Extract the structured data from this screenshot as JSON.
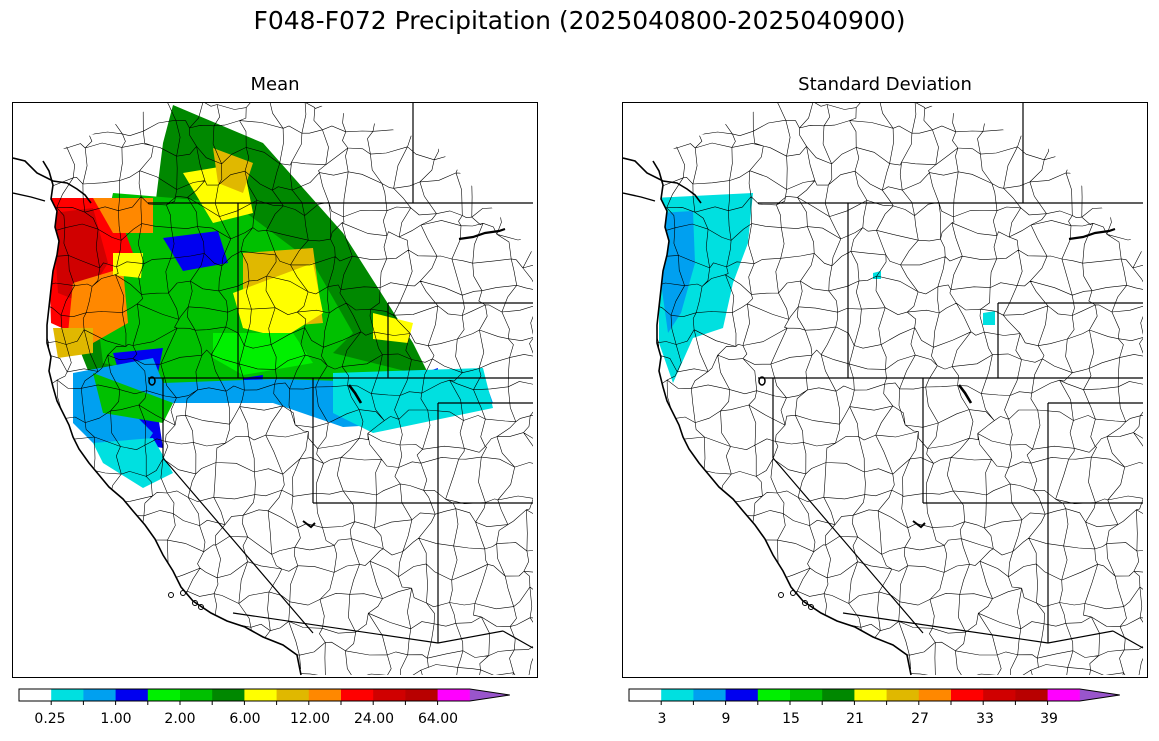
{
  "title": "F048-F072 Precipitation (2025040800-2025040900)",
  "panels": {
    "mean": {
      "title": "Mean",
      "colorbar_labels": [
        "0.25",
        "1.00",
        "2.00",
        "6.00",
        "12.00",
        "24.00",
        "64.00"
      ]
    },
    "std": {
      "title": "Standard Deviation",
      "colorbar_labels": [
        "3",
        "9",
        "15",
        "21",
        "27",
        "33",
        "39"
      ]
    }
  },
  "colors": {
    "palette": [
      "#ffffff",
      "#00e0e0",
      "#00a0f0",
      "#0000f0",
      "#00f000",
      "#00c000",
      "#008800",
      "#ffff00",
      "#e0b800",
      "#ff8800",
      "#ff0000",
      "#d00000",
      "#b80000",
      "#ff00ff",
      "#9955cc"
    ]
  }
}
